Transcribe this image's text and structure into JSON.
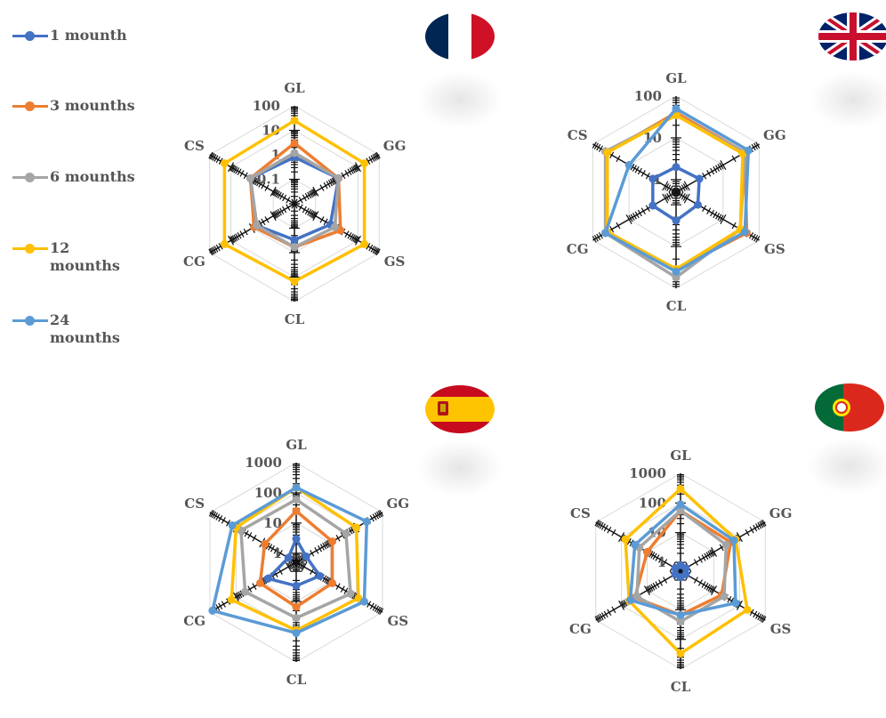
{
  "legend": {
    "series": [
      {
        "name": "1 mounth",
        "color": "#4472C4"
      },
      {
        "name": "3 mounths",
        "color": "#ED7D31"
      },
      {
        "name": "6 mounths",
        "color": "#A5A5A5"
      },
      {
        "name": "12\nmounths",
        "color": "#FFC000"
      },
      {
        "name": "24\nmounths",
        "color": "#5B9BD5"
      }
    ]
  },
  "chart_data": [
    {
      "type": "radar",
      "flag": "france-flag-icon",
      "scale": "log",
      "axes": [
        "GL",
        "GG",
        "GS",
        "CL",
        "CG",
        "CS"
      ],
      "tick_labels": [
        "0.1",
        "1",
        "10",
        "100"
      ],
      "rlim": [
        0.01,
        100
      ],
      "series": [
        {
          "name": "1 mounth",
          "values": [
            0.8,
            1.2,
            0.5,
            0.3,
            0.6,
            1.2
          ]
        },
        {
          "name": "3 mounths",
          "values": [
            3,
            1.2,
            1.5,
            0.6,
            0.8,
            1.2
          ]
        },
        {
          "name": "6 mounths",
          "values": [
            1.2,
            1.2,
            0.8,
            0.6,
            0.6,
            1.2
          ]
        },
        {
          "name": "12 mounths",
          "values": [
            25,
            20,
            20,
            15,
            20,
            20
          ]
        }
      ]
    },
    {
      "type": "radar",
      "flag": "uk-flag-icon",
      "scale": "log",
      "axes": [
        "GL",
        "GG",
        "GS",
        "CL",
        "CG",
        "CS"
      ],
      "tick_labels": [
        "1",
        "10",
        "100"
      ],
      "rlim": [
        0.5,
        100
      ],
      "series": [
        {
          "name": "1 mounth",
          "values": [
            2,
            2.2,
            2,
            2.4,
            2.2,
            2.2
          ]
        },
        {
          "name": "3 mounths",
          "values": [
            40,
            40,
            45,
            35,
            40,
            40
          ]
        },
        {
          "name": "6 mounths",
          "values": [
            35,
            40,
            30,
            55,
            45,
            45
          ]
        },
        {
          "name": "12 mounths",
          "values": [
            35,
            35,
            30,
            35,
            40,
            40
          ]
        },
        {
          "name": "24 mounths",
          "values": [
            50,
            50,
            40,
            40,
            45,
            10
          ]
        }
      ]
    },
    {
      "type": "radar",
      "flag": "spain-flag-icon",
      "scale": "log",
      "axes": [
        "GL",
        "GG",
        "GS",
        "CL",
        "CG",
        "CS"
      ],
      "tick_labels": [
        "1",
        "10",
        "100",
        "1000"
      ],
      "rlim": [
        0.5,
        1000
      ],
      "series": [
        {
          "name": "1 mounth",
          "values": [
            3,
            1.2,
            4,
            3,
            6,
            1
          ]
        },
        {
          "name": "3 mounths",
          "values": [
            25,
            12,
            12,
            15,
            12,
            8
          ]
        },
        {
          "name": "6 mounths",
          "values": [
            60,
            40,
            60,
            35,
            45,
            65
          ]
        },
        {
          "name": "12 mounths",
          "values": [
            150,
            100,
            120,
            90,
            150,
            100
          ]
        },
        {
          "name": "24 mounths",
          "values": [
            150,
            250,
            200,
            110,
            800,
            140
          ]
        }
      ]
    },
    {
      "type": "radar",
      "flag": "portugal-flag-icon",
      "scale": "log",
      "axes": [
        "GL",
        "GG",
        "GS",
        "CL",
        "CG",
        "CS"
      ],
      "tick_labels": [
        "1",
        "10",
        "100",
        "1000"
      ],
      "rlim": [
        0.5,
        1000
      ],
      "series": [
        {
          "name": "1 mounth",
          "values": [
            0.8,
            0.8,
            0.8,
            0.8,
            0.8,
            0.8
          ]
        },
        {
          "name": "3 mounths",
          "values": [
            55,
            45,
            20,
            15,
            30,
            10
          ]
        },
        {
          "name": "6 mounths",
          "values": [
            55,
            30,
            25,
            25,
            25,
            20
          ]
        },
        {
          "name": "12 mounths",
          "values": [
            300,
            70,
            200,
            300,
            50,
            70
          ]
        },
        {
          "name": "24 mounths",
          "values": [
            90,
            60,
            70,
            15,
            45,
            30
          ]
        }
      ]
    }
  ]
}
